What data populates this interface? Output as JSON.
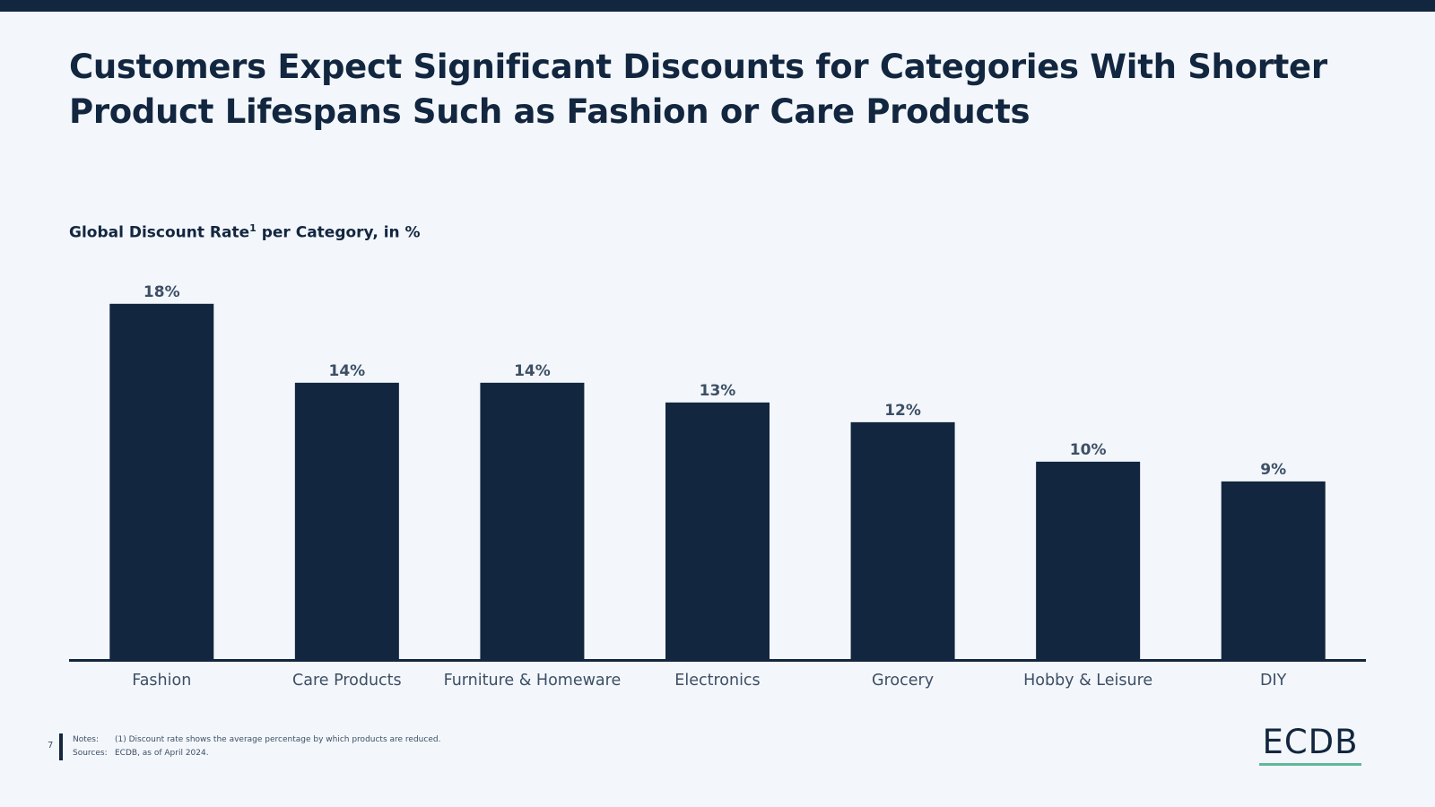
{
  "title": "Customers Expect Significant Discounts for Categories With Shorter Product Lifespans Such as Fashion or Care Products",
  "subtitle": {
    "main": "Global Discount Rate",
    "sup": "1",
    "rest": " per Category, in %"
  },
  "chart_data": {
    "type": "bar",
    "categories": [
      "Fashion",
      "Care Products",
      "Furniture & Homeware",
      "Electronics",
      "Grocery",
      "Hobby & Leisure",
      "DIY"
    ],
    "values": [
      18,
      14,
      14,
      13,
      12,
      10,
      9
    ],
    "value_labels": [
      "18%",
      "14%",
      "14%",
      "13%",
      "12%",
      "10%",
      "9%"
    ],
    "bar_color": "#12263f",
    "ylim": [
      0,
      18.4
    ],
    "grid": false,
    "unit": "%"
  },
  "footer": {
    "page_number": "7",
    "notes_label": "Notes:",
    "notes_text": "(1) Discount rate shows the average percentage by which products are reduced.",
    "sources_label": "Sources:",
    "sources_text": "ECDB, as of April 2024."
  },
  "logo": {
    "text": "ECDB",
    "accent_color": "#5fb89a"
  }
}
